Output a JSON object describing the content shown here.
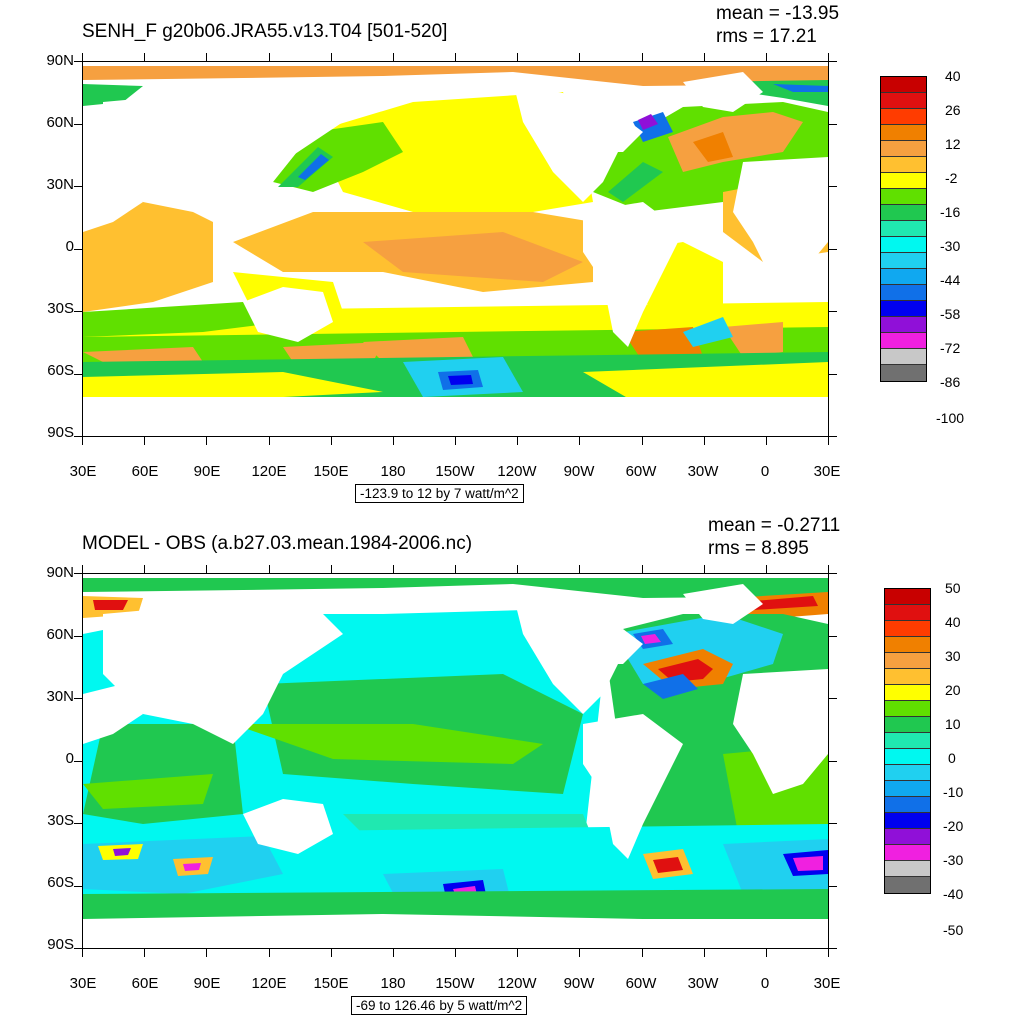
{
  "panels": [
    {
      "title": "SENH_F g20b06.JRA55.v13.T04 [501-520]",
      "mean": "mean = -13.95",
      "rms": "rms = 17.21",
      "lat_labels": [
        "90N",
        "60N",
        "30N",
        "0",
        "30S",
        "60S",
        "90S"
      ],
      "lon_labels": [
        "30E",
        "60E",
        "90E",
        "120E",
        "150E",
        "180",
        "150W",
        "120W",
        "90W",
        "60W",
        "30W",
        "0",
        "30E"
      ],
      "range_label": "-123.9 to 12 by 7 watt/m^2",
      "colorbar_labels": [
        "40",
        "26",
        "12",
        "-2",
        "-16",
        "-30",
        "-44",
        "-58",
        "-72",
        "-86",
        "-100"
      ],
      "colorbar_colors": [
        "#c80000",
        "#e01010",
        "#ff3c00",
        "#f08000",
        "#f6a040",
        "#ffc030",
        "#ffff00",
        "#60e000",
        "#20c850",
        "#20e8b0",
        "#00f8f0",
        "#20d0f0",
        "#10a8f0",
        "#1070e8",
        "#0000f0",
        "#9010d8",
        "#f020e0",
        "#c8c8c8",
        "#707070"
      ]
    },
    {
      "title": "MODEL - OBS (a.b27.03.mean.1984-2006.nc)",
      "mean": "mean = -0.2711",
      "rms": "rms = 8.895",
      "lat_labels": [
        "90N",
        "60N",
        "30N",
        "0",
        "30S",
        "60S",
        "90S"
      ],
      "lon_labels": [
        "30E",
        "60E",
        "90E",
        "120E",
        "150E",
        "180",
        "150W",
        "120W",
        "90W",
        "60W",
        "30W",
        "0",
        "30E"
      ],
      "range_label": "-69 to 126.46 by 5 watt/m^2",
      "colorbar_labels": [
        "50",
        "40",
        "30",
        "20",
        "10",
        "0",
        "-10",
        "-20",
        "-30",
        "-40",
        "-50"
      ],
      "colorbar_colors": [
        "#c80000",
        "#e01010",
        "#ff3c00",
        "#f08000",
        "#f6a040",
        "#ffc030",
        "#ffff00",
        "#60e000",
        "#20c850",
        "#20e8b0",
        "#00f8f0",
        "#20d0f0",
        "#10a8f0",
        "#1070e8",
        "#0000f0",
        "#9010d8",
        "#f020e0",
        "#c8c8c8",
        "#707070"
      ]
    }
  ]
}
